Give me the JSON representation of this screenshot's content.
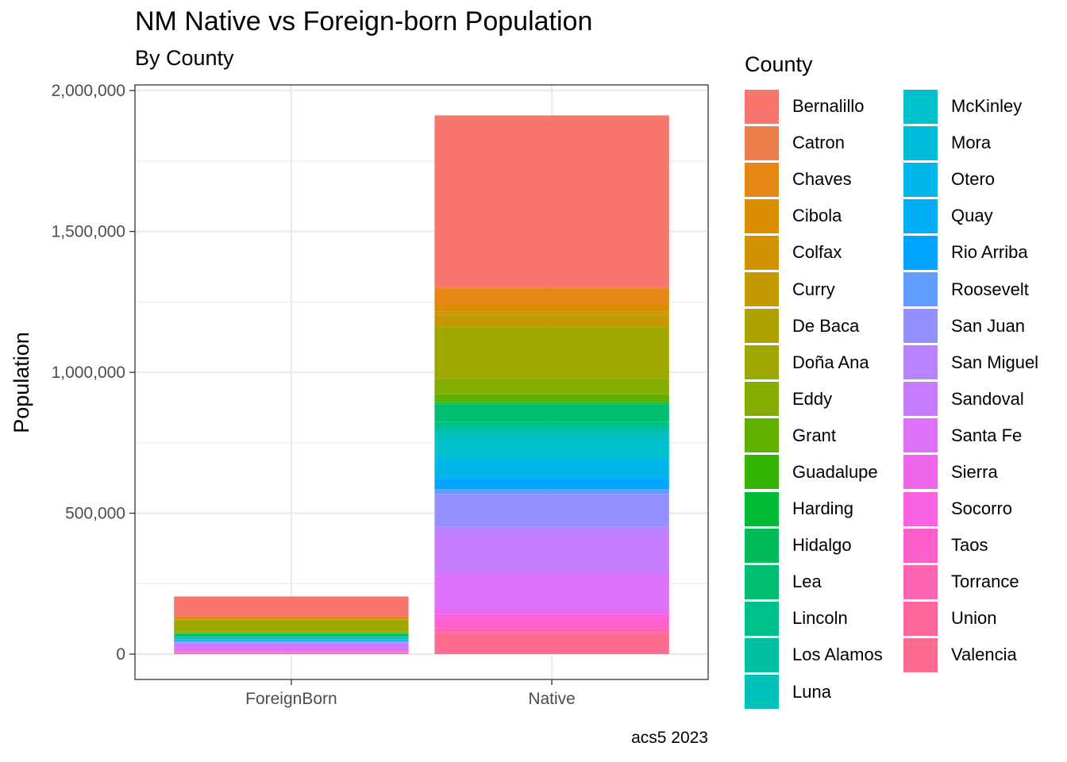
{
  "title": "NM Native vs Foreign-born Population",
  "subtitle": "By County",
  "caption": "acs5 2023",
  "chart_data": {
    "type": "bar",
    "stacked": true,
    "title": "NM Native vs Foreign-born Population",
    "subtitle": "By County",
    "xlabel": "",
    "ylabel": "Population",
    "categories": [
      "ForeignBorn",
      "Native"
    ],
    "ylim": [
      -90000,
      2020000
    ],
    "yticks": [
      0,
      500000,
      1000000,
      1500000,
      2000000
    ],
    "ytick_labels": [
      "0",
      "500,000",
      "1,000,000",
      "1,500,000",
      "2,000,000"
    ],
    "grid": true,
    "legend_title": "County",
    "legend_position": "right",
    "series": [
      {
        "name": "Bernalillo",
        "color": "#F8766D",
        "values": [
          70000,
          610000
        ]
      },
      {
        "name": "Catron",
        "color": "#EE7D4C",
        "values": [
          100,
          3400
        ]
      },
      {
        "name": "Chaves",
        "color": "#E58714",
        "values": [
          9000,
          56000
        ]
      },
      {
        "name": "Cibola",
        "color": "#DB8E00",
        "values": [
          1000,
          26000
        ]
      },
      {
        "name": "Colfax",
        "color": "#D09400",
        "values": [
          500,
          11500
        ]
      },
      {
        "name": "Curry",
        "color": "#C49A00",
        "values": [
          3500,
          44000
        ]
      },
      {
        "name": "De Baca",
        "color": "#AFA200",
        "values": [
          200,
          1700
        ]
      },
      {
        "name": "Doña Ana",
        "color": "#9DA700",
        "values": [
          39000,
          181000
        ]
      },
      {
        "name": "Eddy",
        "color": "#84AD00",
        "values": [
          6000,
          56000
        ]
      },
      {
        "name": "Grant",
        "color": "#60B000",
        "values": [
          1400,
          27000
        ]
      },
      {
        "name": "Guadalupe",
        "color": "#34B400",
        "values": [
          100,
          4300
        ]
      },
      {
        "name": "Harding",
        "color": "#00B934",
        "values": [
          20,
          620
        ]
      },
      {
        "name": "Hidalgo",
        "color": "#00BB5A",
        "values": [
          700,
          3500
        ]
      },
      {
        "name": "Lea",
        "color": "#00BE70",
        "values": [
          12000,
          62000
        ]
      },
      {
        "name": "Lincoln",
        "color": "#00C089",
        "values": [
          1000,
          19000
        ]
      },
      {
        "name": "Los Alamos",
        "color": "#00C0A1",
        "values": [
          2200,
          17000
        ]
      },
      {
        "name": "Luna",
        "color": "#00C0B8",
        "values": [
          4500,
          21000
        ]
      },
      {
        "name": "McKinley",
        "color": "#00C0CB",
        "values": [
          1600,
          69000
        ]
      },
      {
        "name": "Mora",
        "color": "#00BBDA",
        "values": [
          100,
          4100
        ]
      },
      {
        "name": "Otero",
        "color": "#00B6E9",
        "values": [
          4000,
          64000
        ]
      },
      {
        "name": "Quay",
        "color": "#00AFF6",
        "values": [
          200,
          8300
        ]
      },
      {
        "name": "Rio Arriba",
        "color": "#00A5FF",
        "values": [
          2500,
          37000
        ]
      },
      {
        "name": "Roosevelt",
        "color": "#619CFF",
        "values": [
          1600,
          17000
        ]
      },
      {
        "name": "San Juan",
        "color": "#9590FF",
        "values": [
          4000,
          117000
        ]
      },
      {
        "name": "San Miguel",
        "color": "#B983FF",
        "values": [
          1000,
          26000
        ]
      },
      {
        "name": "Sandoval",
        "color": "#C77CFF",
        "values": [
          13000,
          135000
        ]
      },
      {
        "name": "Santa Fe",
        "color": "#DD71FA",
        "values": [
          17000,
          138000
        ]
      },
      {
        "name": "Sierra",
        "color": "#EE67EA",
        "values": [
          700,
          11000
        ]
      },
      {
        "name": "Socorro",
        "color": "#F863DF",
        "values": [
          500,
          16000
        ]
      },
      {
        "name": "Taos",
        "color": "#FF61CC",
        "values": [
          1300,
          33000
        ]
      },
      {
        "name": "Torrance",
        "color": "#FF64B5",
        "values": [
          700,
          14500
        ]
      },
      {
        "name": "Union",
        "color": "#FF679C",
        "values": [
          100,
          3900
        ]
      },
      {
        "name": "Valencia",
        "color": "#FF6C91",
        "values": [
          5000,
          74000
        ]
      }
    ]
  }
}
